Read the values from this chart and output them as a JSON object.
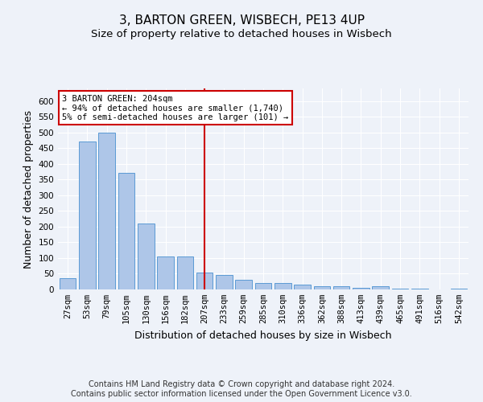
{
  "title": "3, BARTON GREEN, WISBECH, PE13 4UP",
  "subtitle": "Size of property relative to detached houses in Wisbech",
  "xlabel": "Distribution of detached houses by size in Wisbech",
  "ylabel": "Number of detached properties",
  "categories": [
    "27sqm",
    "53sqm",
    "79sqm",
    "105sqm",
    "130sqm",
    "156sqm",
    "182sqm",
    "207sqm",
    "233sqm",
    "259sqm",
    "285sqm",
    "310sqm",
    "336sqm",
    "362sqm",
    "388sqm",
    "413sqm",
    "439sqm",
    "465sqm",
    "491sqm",
    "516sqm",
    "542sqm"
  ],
  "values": [
    35,
    470,
    500,
    370,
    210,
    105,
    105,
    55,
    45,
    30,
    20,
    20,
    15,
    10,
    10,
    5,
    10,
    2,
    2,
    0,
    3
  ],
  "bar_color": "#aec6e8",
  "bar_edge_color": "#5b9bd5",
  "marker_line_index": 7,
  "marker_line_color": "#cc0000",
  "annotation_text": "3 BARTON GREEN: 204sqm\n← 94% of detached houses are smaller (1,740)\n5% of semi-detached houses are larger (101) →",
  "annotation_box_color": "#ffffff",
  "annotation_box_edge_color": "#cc0000",
  "ylim": [
    0,
    640
  ],
  "yticks": [
    0,
    50,
    100,
    150,
    200,
    250,
    300,
    350,
    400,
    450,
    500,
    550,
    600
  ],
  "footer_line1": "Contains HM Land Registry data © Crown copyright and database right 2024.",
  "footer_line2": "Contains public sector information licensed under the Open Government Licence v3.0.",
  "background_color": "#eef2f9",
  "grid_color": "#ffffff",
  "title_fontsize": 11,
  "subtitle_fontsize": 9.5,
  "label_fontsize": 9,
  "tick_fontsize": 7.5,
  "footer_fontsize": 7
}
